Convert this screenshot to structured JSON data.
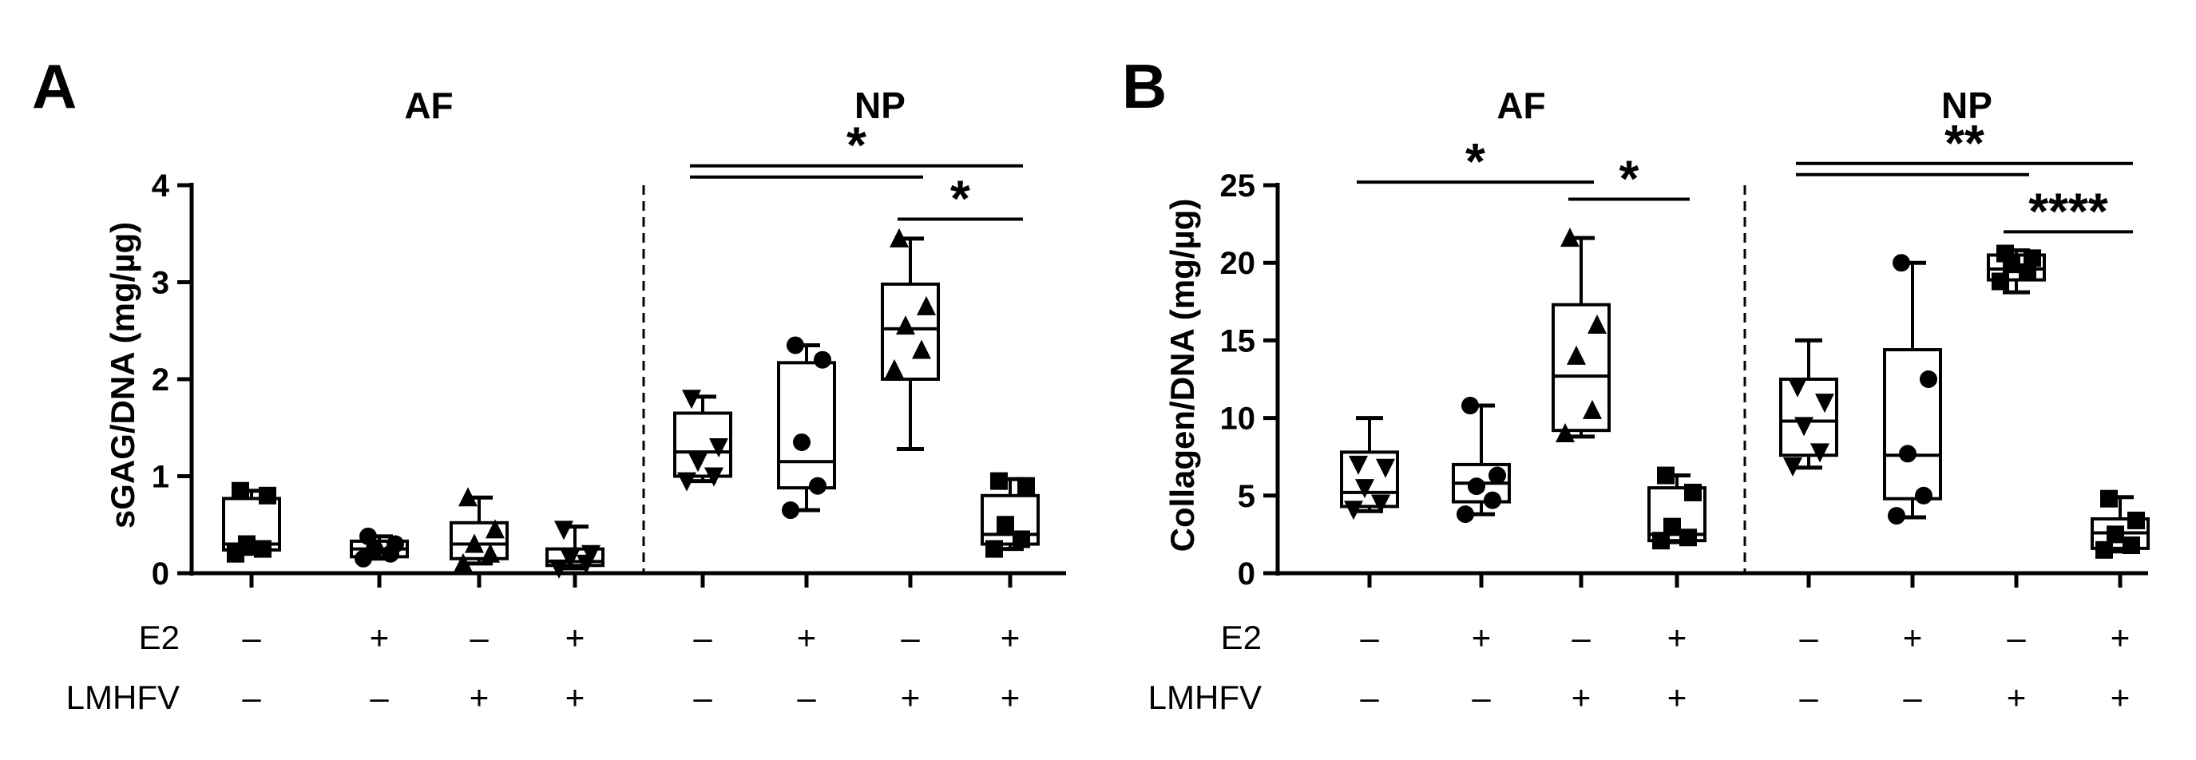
{
  "chart_data": [
    {
      "panel": "A",
      "type": "box",
      "ylabel": "sGAG/DNA (mg/µg)",
      "ylim": [
        0,
        4
      ],
      "yticks": [
        "0",
        "1",
        "2",
        "3",
        "4"
      ],
      "groups": [
        {
          "title": "AF",
          "boxes": [
            {
              "marker": "square",
              "min": 0.2,
              "q1": 0.24,
              "median": 0.3,
              "q3": 0.77,
              "max": 0.85,
              "points": [
                0.2,
                0.25,
                0.3,
                0.8,
                0.85
              ]
            },
            {
              "marker": "circle",
              "min": 0.15,
              "q1": 0.17,
              "median": 0.25,
              "q3": 0.33,
              "max": 0.38,
              "points": [
                0.15,
                0.2,
                0.25,
                0.3,
                0.38
              ]
            },
            {
              "marker": "triangle",
              "min": 0.1,
              "q1": 0.15,
              "median": 0.3,
              "q3": 0.52,
              "max": 0.78,
              "points": [
                0.1,
                0.2,
                0.3,
                0.45,
                0.78
              ]
            },
            {
              "marker": "tri-down",
              "min": 0.05,
              "q1": 0.08,
              "median": 0.12,
              "q3": 0.25,
              "max": 0.48,
              "points": [
                0.05,
                0.1,
                0.15,
                0.2,
                0.45
              ]
            }
          ]
        },
        {
          "title": "NP",
          "boxes": [
            {
              "marker": "tri-down",
              "min": 0.95,
              "q1": 1.0,
              "median": 1.25,
              "q3": 1.65,
              "max": 1.82,
              "points": [
                0.95,
                1.0,
                1.15,
                1.3,
                1.8
              ]
            },
            {
              "marker": "circle",
              "min": 0.65,
              "q1": 0.88,
              "median": 1.15,
              "q3": 2.17,
              "max": 2.35,
              "points": [
                0.65,
                0.9,
                1.35,
                2.2,
                2.35
              ]
            },
            {
              "marker": "triangle",
              "min": 1.28,
              "q1": 2.0,
              "median": 2.52,
              "q3": 2.98,
              "max": 3.45,
              "points": [
                2.1,
                2.3,
                2.55,
                2.75,
                3.45
              ]
            },
            {
              "marker": "square",
              "min": 0.25,
              "q1": 0.3,
              "median": 0.4,
              "q3": 0.8,
              "max": 0.97,
              "points": [
                0.25,
                0.35,
                0.5,
                0.9,
                0.95
              ]
            }
          ]
        }
      ],
      "annotations": [
        {
          "label": "*",
          "from": 4,
          "to": 7,
          "y": 4.2,
          "double": true
        },
        {
          "label": "*",
          "from": 6,
          "to": 7,
          "y": 3.65,
          "double": false
        }
      ],
      "factors": [
        {
          "name": "E2",
          "signs": [
            "–",
            "+",
            "–",
            "+",
            "–",
            "+",
            "–",
            "+"
          ]
        },
        {
          "name": "LMHFV",
          "signs": [
            "–",
            "–",
            "+",
            "+",
            "–",
            "–",
            "+",
            "+"
          ]
        }
      ]
    },
    {
      "panel": "B",
      "type": "box",
      "ylabel": "Collagen/DNA (mg/µg)",
      "ylim": [
        0,
        25
      ],
      "yticks": [
        "0",
        "5",
        "10",
        "15",
        "20",
        "25"
      ],
      "groups": [
        {
          "title": "AF",
          "boxes": [
            {
              "marker": "tri-down",
              "min": 4.0,
              "q1": 4.3,
              "median": 5.2,
              "q3": 7.8,
              "max": 10.0,
              "points": [
                4.1,
                4.5,
                5.5,
                6.8,
                7.0
              ]
            },
            {
              "marker": "circle",
              "min": 3.8,
              "q1": 4.6,
              "median": 5.8,
              "q3": 7.0,
              "max": 10.8,
              "points": [
                3.8,
                4.7,
                5.6,
                6.3,
                10.8
              ]
            },
            {
              "marker": "triangle",
              "min": 8.8,
              "q1": 9.2,
              "median": 12.7,
              "q3": 17.3,
              "max": 21.6,
              "points": [
                9.0,
                10.5,
                14.0,
                16.0,
                21.6
              ]
            },
            {
              "marker": "square",
              "min": 2.0,
              "q1": 2.1,
              "median": 2.5,
              "q3": 5.5,
              "max": 6.3,
              "points": [
                2.1,
                2.3,
                3.0,
                5.2,
                6.3
              ]
            }
          ]
        },
        {
          "title": "NP",
          "boxes": [
            {
              "marker": "tri-down",
              "min": 6.8,
              "q1": 7.6,
              "median": 9.8,
              "q3": 12.5,
              "max": 15.0,
              "points": [
                6.9,
                7.8,
                9.5,
                11.0,
                12.0
              ]
            },
            {
              "marker": "circle",
              "min": 3.6,
              "q1": 4.8,
              "median": 7.6,
              "q3": 14.4,
              "max": 20.0,
              "points": [
                3.7,
                5.0,
                7.7,
                12.5,
                20.0
              ]
            },
            {
              "marker": "square",
              "min": 18.1,
              "q1": 18.9,
              "median": 19.6,
              "q3": 20.5,
              "max": 20.8,
              "points": [
                18.8,
                19.4,
                19.9,
                20.3,
                20.6
              ]
            },
            {
              "marker": "square",
              "min": 1.4,
              "q1": 1.6,
              "median": 2.6,
              "q3": 3.5,
              "max": 4.9,
              "points": [
                1.5,
                1.8,
                2.5,
                3.4,
                4.8
              ]
            }
          ]
        }
      ],
      "annotations": [
        {
          "label": "*",
          "from": 0,
          "to": 2,
          "y": 25.2,
          "double": false
        },
        {
          "label": "*",
          "from": 2,
          "to": 3,
          "y": 24.1,
          "double": false
        },
        {
          "label": "**",
          "from": 4,
          "to": 7,
          "y": 26.4,
          "double": true
        },
        {
          "label": "****",
          "from": 6,
          "to": 7,
          "y": 22.0,
          "double": false
        }
      ],
      "factors": [
        {
          "name": "E2",
          "signs": [
            "–",
            "+",
            "–",
            "+",
            "–",
            "+",
            "–",
            "+"
          ]
        },
        {
          "name": "LMHFV",
          "signs": [
            "–",
            "–",
            "+",
            "+",
            "–",
            "–",
            "+",
            "+"
          ]
        }
      ]
    }
  ]
}
